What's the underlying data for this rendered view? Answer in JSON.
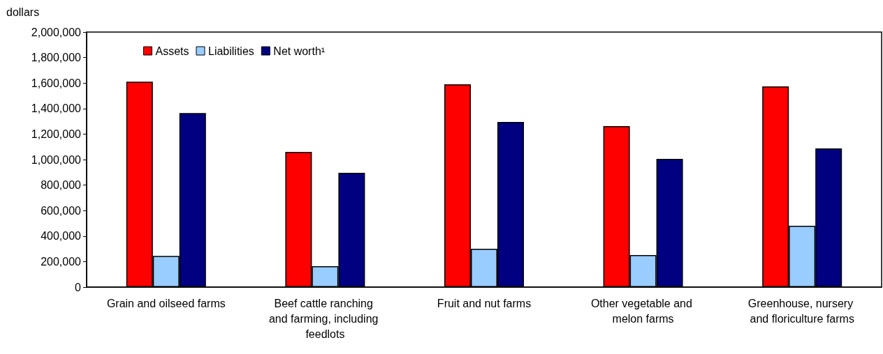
{
  "chart_data": {
    "type": "bar",
    "ylabel": "dollars",
    "categories": [
      "Grain and oilseed farms",
      "Beef cattle ranching and farming, including feedlots",
      "Fruit and nut farms",
      "Other vegetable and melon farms",
      "Greenhouse, nursery and floriculture farms"
    ],
    "series": [
      {
        "name": "Assets",
        "color": "#ff0000",
        "values": [
          1610000,
          1060000,
          1590000,
          1262000,
          1574000
        ]
      },
      {
        "name": "Liabilities",
        "color": "#99ccff",
        "values": [
          245000,
          164000,
          300000,
          251000,
          481000
        ]
      },
      {
        "name": "Net worth¹",
        "color": "#000080",
        "values": [
          1365000,
          896000,
          1295000,
          1005000,
          1087000
        ]
      }
    ],
    "ylim": [
      0,
      2000000
    ],
    "yticks": [
      0,
      {
        "value": 200000,
        "label": "200,000"
      },
      {
        "value": 400000,
        "label": "400,000"
      },
      {
        "value": 600000,
        "label": "600,000"
      },
      {
        "value": 800000,
        "label": "800,000"
      },
      {
        "value": 1000000,
        "label": "1,000,000"
      },
      {
        "value": 1200000,
        "label": "1,200,000"
      },
      {
        "value": 1400000,
        "label": "1,400,000"
      },
      {
        "value": 1600000,
        "label": "1,600,000"
      },
      {
        "value": 1800000,
        "label": "1,800,000"
      },
      {
        "value": 2000000,
        "label": "2,000,000"
      }
    ],
    "grid": false,
    "legend": "top left"
  }
}
